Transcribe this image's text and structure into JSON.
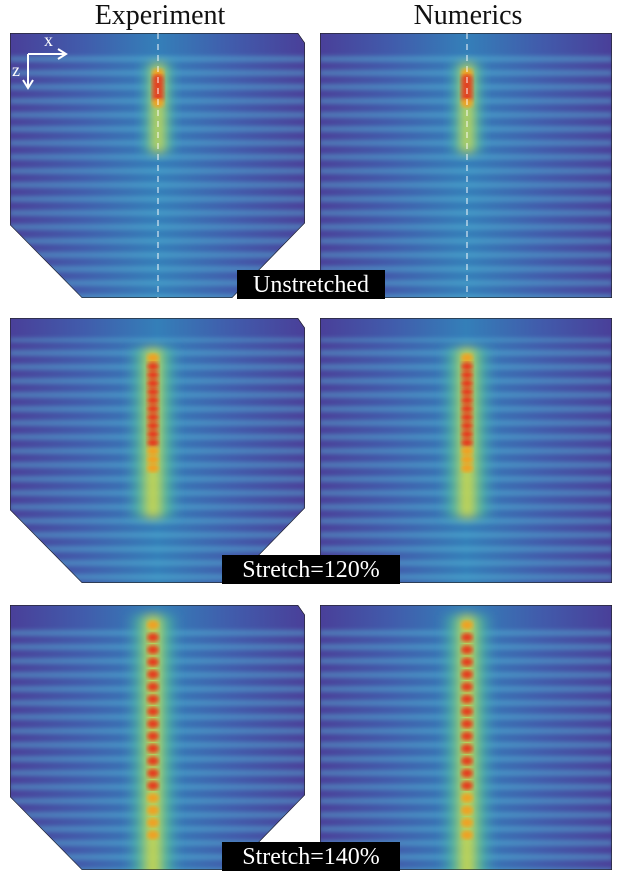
{
  "headers": {
    "left": "Experiment",
    "right": "Numerics"
  },
  "axes": {
    "x": "x",
    "z": "z"
  },
  "rows": [
    {
      "label": "Unstretched"
    },
    {
      "label": "Stretch=120%"
    },
    {
      "label": "Stretch=140%"
    }
  ]
}
